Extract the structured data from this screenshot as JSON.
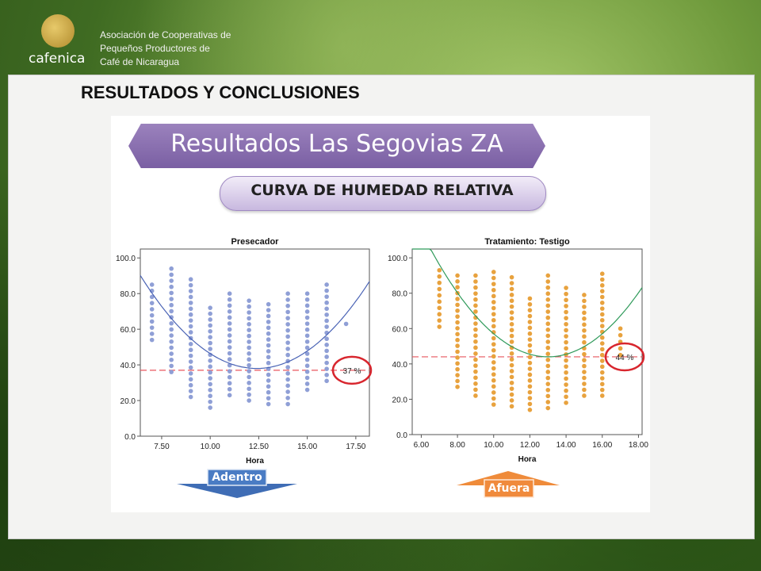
{
  "header": {
    "logo_text": "cafenica",
    "org_lines": [
      "Asociación de Cooperativas de",
      "Pequeños Productores de",
      "Café de Nicaragua"
    ],
    "logo_icon": "cafenica-logo-icon"
  },
  "page_title": "RESULTADOS  Y  CONCLUSIONES",
  "banner_title": "Resultados Las Segovias ZA",
  "subtitle": "CURVA DE HUMEDAD RELATIVA",
  "arrows": {
    "left_label": "Adentro",
    "right_label": "Afuera",
    "left_color": "#4a7cc4",
    "right_color": "#ef8b3a"
  },
  "chart_data": [
    {
      "type": "scatter",
      "title": "Presecador",
      "xlabel": "Hora",
      "ylabel": "",
      "xlim": [
        6.4,
        18.2
      ],
      "ylim": [
        0,
        105
      ],
      "xticks": [
        "7.50",
        "10.00",
        "12.50",
        "15.00",
        "17.50"
      ],
      "xtick_values": [
        7.5,
        10,
        12.5,
        15,
        17.5
      ],
      "yticks": [
        "0.0",
        "20.0",
        "40.0",
        "60.0",
        "80.0",
        "100.0"
      ],
      "ytick_values": [
        0,
        20,
        40,
        60,
        80,
        100
      ],
      "point_color": "#8f9fd6",
      "curve_color": "#4a63b5",
      "reference_line": 37,
      "reference_label": "37 %",
      "fit_curve": {
        "vertex_x": 12.4,
        "vertex_y": 38,
        "curvature": 1.45
      },
      "columns": [
        {
          "x": 7.0,
          "ymin": 54,
          "ymax": 85
        },
        {
          "x": 8.0,
          "ymin": 36,
          "ymax": 94
        },
        {
          "x": 9.0,
          "ymin": 22,
          "ymax": 88
        },
        {
          "x": 10.0,
          "ymin": 16,
          "ymax": 72
        },
        {
          "x": 11.0,
          "ymin": 23,
          "ymax": 80
        },
        {
          "x": 12.0,
          "ymin": 20,
          "ymax": 76
        },
        {
          "x": 13.0,
          "ymin": 18,
          "ymax": 74
        },
        {
          "x": 14.0,
          "ymin": 18,
          "ymax": 80
        },
        {
          "x": 15.0,
          "ymin": 26,
          "ymax": 80
        },
        {
          "x": 16.0,
          "ymin": 31,
          "ymax": 85
        },
        {
          "x": 17.0,
          "ymin": 63,
          "ymax": 63
        }
      ]
    },
    {
      "type": "scatter",
      "title": "Tratamiento: Testigo",
      "xlabel": "Hora",
      "ylabel": "",
      "xlim": [
        5.5,
        18.2
      ],
      "ylim": [
        0,
        105
      ],
      "xticks": [
        "6.00",
        "8.00",
        "10.00",
        "12.00",
        "14.00",
        "16.00",
        "18.00"
      ],
      "xtick_values": [
        6,
        8,
        10,
        12,
        14,
        16,
        18
      ],
      "yticks": [
        "0.0",
        "20.0",
        "40.0",
        "60.0",
        "80.0",
        "100.0"
      ],
      "ytick_values": [
        0,
        20,
        40,
        60,
        80,
        100
      ],
      "point_color": "#e8a23e",
      "curve_color": "#2f9a5a",
      "reference_line": 44,
      "reference_label": "44 %",
      "fit_curve": {
        "vertex_x": 13.0,
        "vertex_y": 44,
        "curvature": 1.45
      },
      "columns": [
        {
          "x": 7.0,
          "ymin": 61,
          "ymax": 93
        },
        {
          "x": 8.0,
          "ymin": 27,
          "ymax": 90
        },
        {
          "x": 9.0,
          "ymin": 22,
          "ymax": 90
        },
        {
          "x": 10.0,
          "ymin": 17,
          "ymax": 92
        },
        {
          "x": 11.0,
          "ymin": 16,
          "ymax": 89
        },
        {
          "x": 12.0,
          "ymin": 14,
          "ymax": 77
        },
        {
          "x": 13.0,
          "ymin": 15,
          "ymax": 90
        },
        {
          "x": 14.0,
          "ymin": 18,
          "ymax": 83
        },
        {
          "x": 15.0,
          "ymin": 22,
          "ymax": 79
        },
        {
          "x": 16.0,
          "ymin": 22,
          "ymax": 91
        },
        {
          "x": 17.0,
          "ymin": 45,
          "ymax": 60
        }
      ]
    }
  ]
}
